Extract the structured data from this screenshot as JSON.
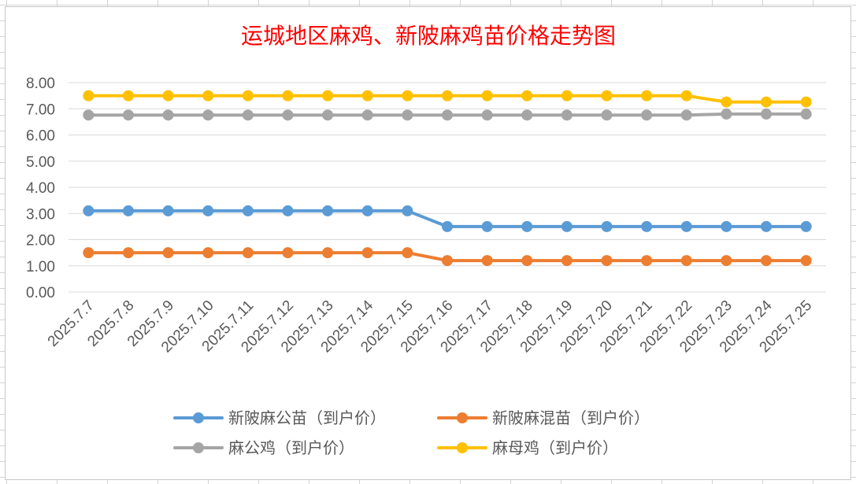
{
  "chart_data": {
    "type": "line",
    "title": "运城地区麻鸡、新陂麻鸡苗价格走势图",
    "xlabel": "",
    "ylabel": "",
    "ylim": [
      0,
      8
    ],
    "yticks": [
      "0.00",
      "1.00",
      "2.00",
      "3.00",
      "4.00",
      "5.00",
      "6.00",
      "7.00",
      "8.00"
    ],
    "grid": true,
    "legend_position": "bottom",
    "categories": [
      "2025.7.7",
      "2025.7.8",
      "2025.7.9",
      "2025.7.10",
      "2025.7.11",
      "2025.7.12",
      "2025.7.13",
      "2025.7.14",
      "2025.7.15",
      "2025.7.16",
      "2025.7.17",
      "2025.7.18",
      "2025.7.19",
      "2025.7.20",
      "2025.7.21",
      "2025.7.22",
      "2025.7.23",
      "2025.7.24",
      "2025.7.25"
    ],
    "series": [
      {
        "name": "新陂麻公苗（到户价）",
        "color": "#5b9bd5",
        "values": [
          3.1,
          3.1,
          3.1,
          3.1,
          3.1,
          3.1,
          3.1,
          3.1,
          3.1,
          2.5,
          2.5,
          2.5,
          2.5,
          2.5,
          2.5,
          2.5,
          2.5,
          2.5,
          2.5
        ]
      },
      {
        "name": "新陂麻混苗（到户价）",
        "color": "#ed7d31",
        "values": [
          1.5,
          1.5,
          1.5,
          1.5,
          1.5,
          1.5,
          1.5,
          1.5,
          1.5,
          1.2,
          1.2,
          1.2,
          1.2,
          1.2,
          1.2,
          1.2,
          1.2,
          1.2,
          1.2
        ]
      },
      {
        "name": "麻公鸡（到户价）",
        "color": "#a5a5a5",
        "values": [
          6.76,
          6.76,
          6.76,
          6.76,
          6.76,
          6.76,
          6.76,
          6.76,
          6.76,
          6.76,
          6.76,
          6.76,
          6.76,
          6.76,
          6.76,
          6.76,
          6.8,
          6.8,
          6.8
        ]
      },
      {
        "name": "麻母鸡（到户价）",
        "color": "#ffc000",
        "values": [
          7.5,
          7.5,
          7.5,
          7.5,
          7.5,
          7.5,
          7.5,
          7.5,
          7.5,
          7.5,
          7.5,
          7.5,
          7.5,
          7.5,
          7.5,
          7.5,
          7.26,
          7.26,
          7.26
        ]
      }
    ]
  }
}
